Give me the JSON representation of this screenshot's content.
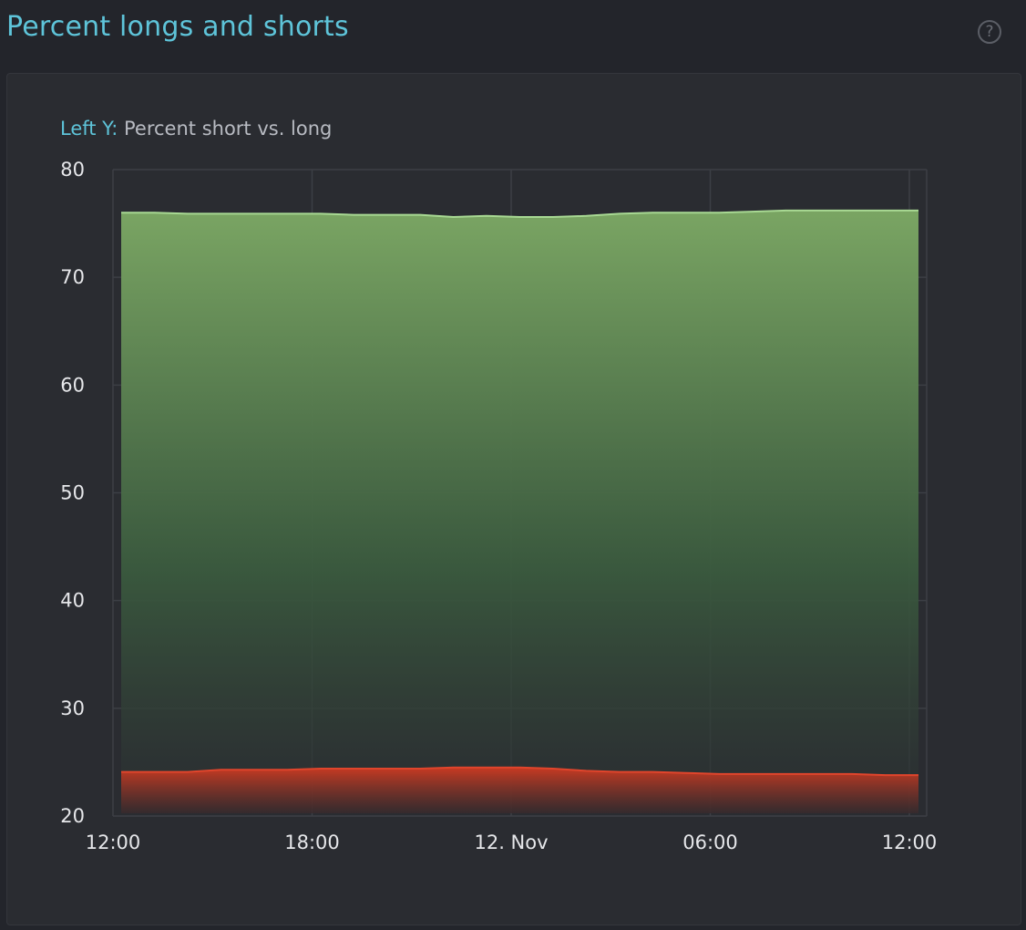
{
  "header": {
    "title": "Percent longs and shorts",
    "help_icon": "question-circle-icon",
    "help_glyph": "?"
  },
  "colors": {
    "accent": "#5ec4d9",
    "long_line": "#a8d993",
    "long_fill_top": "#7aa563",
    "short_line": "#e0452c",
    "short_fill_top": "#c83a22"
  },
  "chart_data": {
    "type": "area",
    "axis_caption_prefix": "Left Y:",
    "ylabel": "Percent short vs. long",
    "ylim": [
      20,
      80
    ],
    "yticks": [
      "80",
      "70",
      "60",
      "50",
      "40",
      "30",
      "20"
    ],
    "xticks": [
      "12:00",
      "18:00",
      "12. Nov",
      "06:00",
      "12:00"
    ],
    "grid": true,
    "x_hours": [
      0,
      1,
      2,
      3,
      4,
      5,
      6,
      7,
      8,
      9,
      10,
      11,
      12,
      13,
      14,
      15,
      16,
      17,
      18,
      19,
      20,
      21,
      22,
      23,
      24
    ],
    "series": [
      {
        "key": "long",
        "values": [
          76.0,
          76.0,
          75.9,
          75.9,
          75.9,
          75.9,
          75.9,
          75.8,
          75.8,
          75.8,
          75.6,
          75.7,
          75.6,
          75.6,
          75.7,
          75.9,
          76.0,
          76.0,
          76.0,
          76.1,
          76.2,
          76.2,
          76.2,
          76.2,
          76.2
        ]
      },
      {
        "key": "short",
        "values": [
          24.1,
          24.1,
          24.1,
          24.3,
          24.3,
          24.3,
          24.4,
          24.4,
          24.4,
          24.4,
          24.5,
          24.5,
          24.5,
          24.4,
          24.2,
          24.1,
          24.1,
          24.0,
          23.9,
          23.9,
          23.9,
          23.9,
          23.9,
          23.8,
          23.8
        ]
      }
    ]
  }
}
